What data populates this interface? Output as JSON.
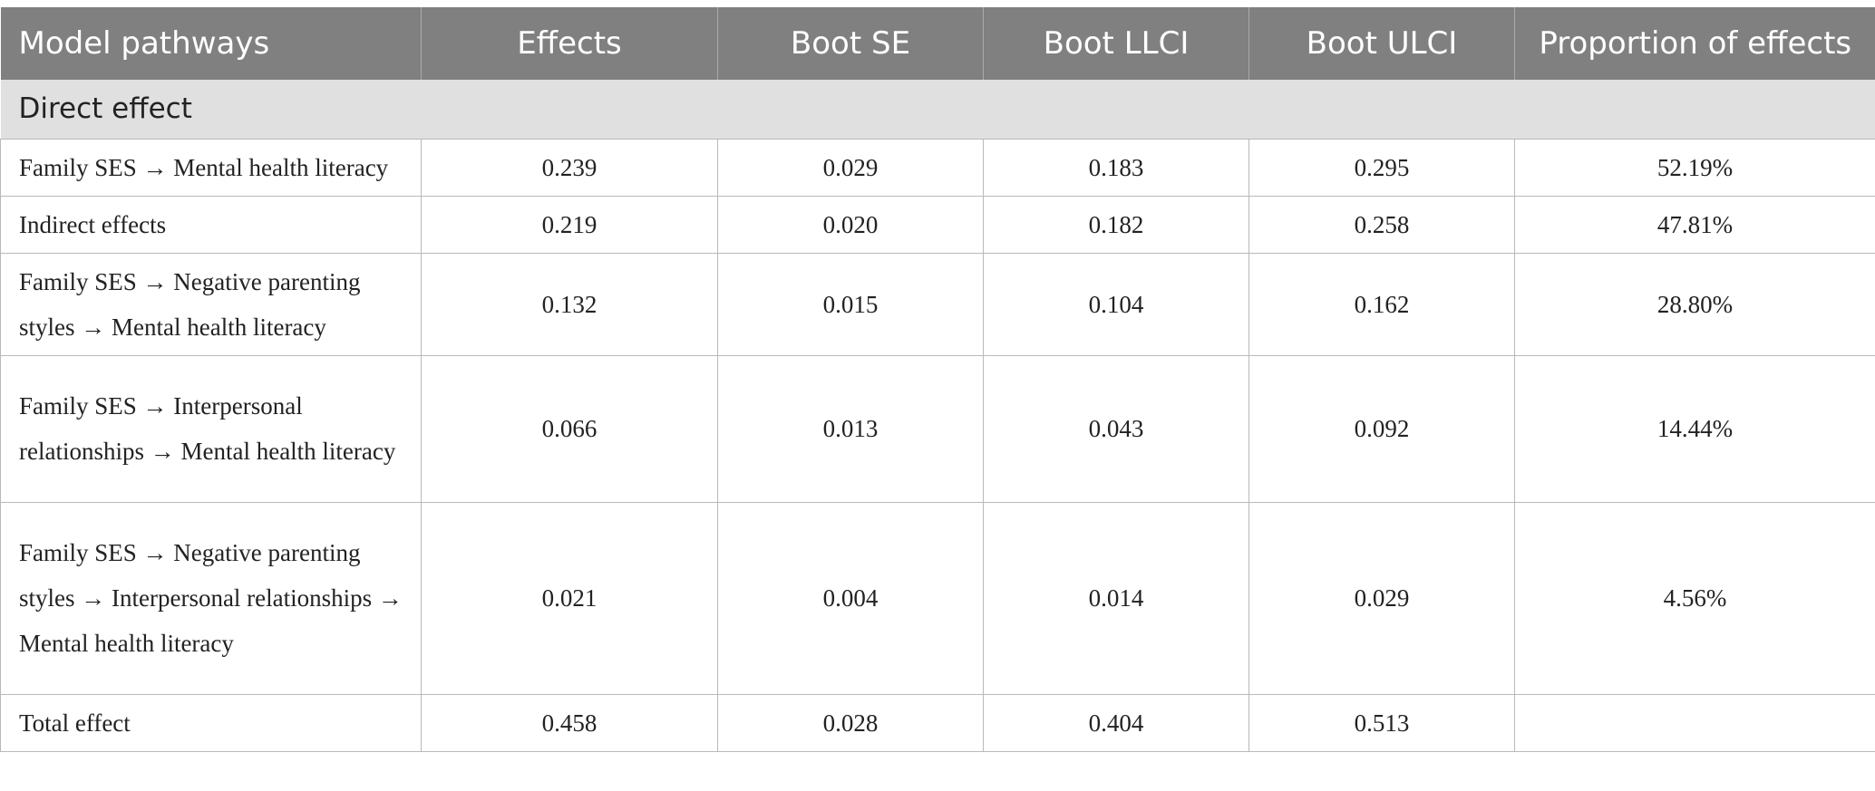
{
  "table": {
    "headers": [
      "Model pathways",
      "Effects",
      "Boot SE",
      "Boot LLCI",
      "Boot ULCI",
      "Proportion of effects"
    ],
    "section_label": "Direct effect",
    "rows": [
      {
        "pathway": "Family SES → Mental health literacy",
        "effects": "0.239",
        "boot_se": "0.029",
        "boot_llci": "0.183",
        "boot_ulci": "0.295",
        "proportion": "52.19%"
      },
      {
        "pathway": "Indirect effects",
        "effects": "0.219",
        "boot_se": "0.020",
        "boot_llci": "0.182",
        "boot_ulci": "0.258",
        "proportion": "47.81%"
      },
      {
        "pathway": "Family SES → Negative parenting styles → Mental health literacy",
        "effects": "0.132",
        "boot_se": "0.015",
        "boot_llci": "0.104",
        "boot_ulci": "0.162",
        "proportion": "28.80%"
      },
      {
        "pathway": "Family SES → Interpersonal relationships → Mental health literacy",
        "effects": "0.066",
        "boot_se": "0.013",
        "boot_llci": "0.043",
        "boot_ulci": "0.092",
        "proportion": "14.44%"
      },
      {
        "pathway": "Family SES → Negative parenting styles → Interpersonal relationships → Mental health literacy",
        "effects": "0.021",
        "boot_se": "0.004",
        "boot_llci": "0.014",
        "boot_ulci": "0.029",
        "proportion": "4.56%"
      },
      {
        "pathway": "Total effect",
        "effects": "0.458",
        "boot_se": "0.028",
        "boot_llci": "0.404",
        "boot_ulci": "0.513",
        "proportion": ""
      }
    ]
  }
}
